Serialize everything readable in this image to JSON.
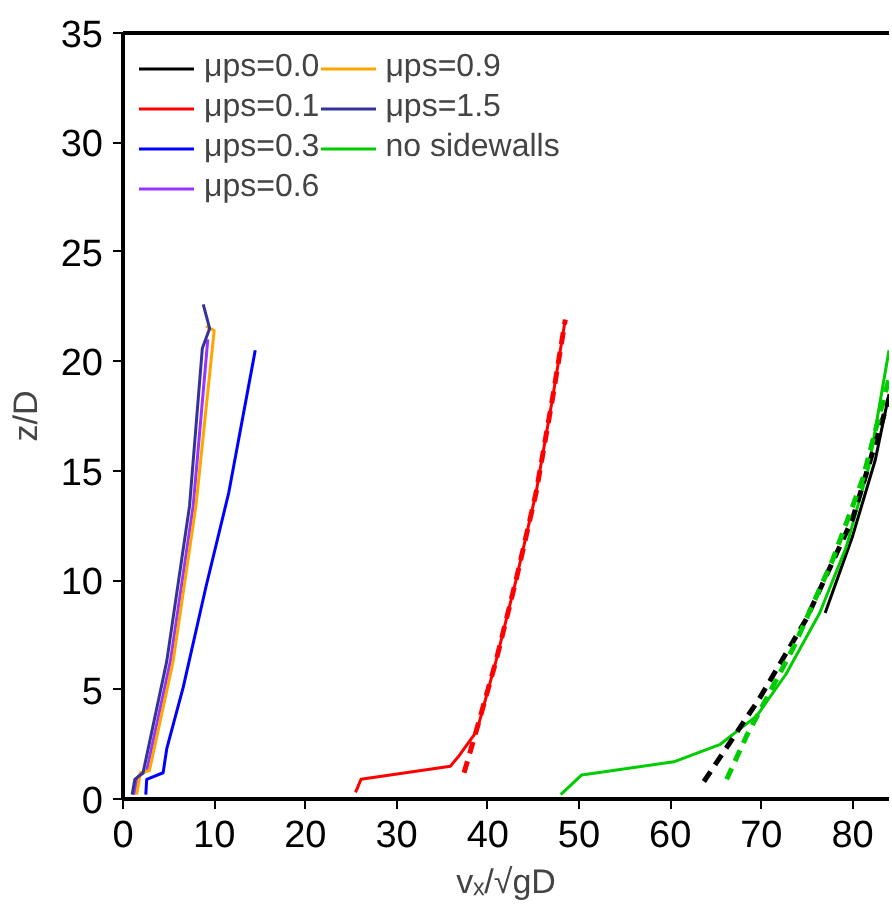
{
  "chart_data": {
    "type": "line",
    "xlabel": "vₓ/√gD",
    "ylabel": "z/D",
    "xlim": [
      0,
      84
    ],
    "ylim": [
      0,
      35
    ],
    "xticks": [
      0,
      10,
      20,
      30,
      40,
      50,
      60,
      70,
      80
    ],
    "yticks": [
      0,
      5,
      10,
      15,
      20,
      25,
      30,
      35
    ],
    "grid": false,
    "legend": "top left",
    "marker": "none",
    "series": [
      {
        "name": "μps=0.0",
        "color": "#000000",
        "x": [
          77,
          80,
          82.5,
          84
        ],
        "values": [
          8.5,
          12,
          15.5,
          18.5
        ]
      },
      {
        "name": "μps=0.1",
        "color": "#ff0000",
        "x": [
          25.5,
          26.1,
          35.9,
          36.9,
          38.8,
          40.9,
          43.1,
          45.3,
          47.1,
          48.5
        ],
        "values": [
          0.3,
          0.9,
          1.5,
          2.0,
          3.1,
          6.3,
          10.0,
          14.0,
          18.3,
          21.9
        ]
      },
      {
        "name": "μps=0.3",
        "color": "#0000ff",
        "x": [
          2.5,
          2.6,
          4.4,
          4.8,
          6.6,
          9.1,
          11.6,
          14.5
        ],
        "values": [
          0.2,
          0.9,
          1.2,
          2.3,
          5.1,
          9.7,
          14.0,
          20.5
        ]
      },
      {
        "name": "μps=0.6",
        "color": "#9933ff",
        "x": [
          1.2,
          1.6,
          2.6,
          5.2,
          7.7,
          9.3
        ],
        "values": [
          0.2,
          1.0,
          1.3,
          6.3,
          13.4,
          21.0
        ]
      },
      {
        "name": "μps=0.9",
        "color": "#ffa500",
        "x": [
          1.5,
          1.9,
          2.9,
          5.5,
          8.0,
          10.0,
          9.1
        ],
        "values": [
          0.2,
          1.2,
          1.3,
          6.3,
          13.4,
          21.4,
          21.6
        ]
      },
      {
        "name": "μps=1.5",
        "color": "#333399",
        "x": [
          1.0,
          1.3,
          2.2,
          4.8,
          7.3,
          8.7,
          9.5,
          8.8
        ],
        "values": [
          0.2,
          0.9,
          1.2,
          6.3,
          13.4,
          20.6,
          21.5,
          22.6
        ]
      },
      {
        "name": "no sidewalls",
        "color": "#00cc00",
        "x": [
          48.0,
          50.3,
          60.4,
          65.5,
          69.5,
          72.7,
          76.4,
          79.3,
          81.8,
          84.0
        ],
        "values": [
          0.2,
          1.1,
          1.7,
          2.5,
          3.8,
          5.7,
          8.5,
          11.5,
          15.2,
          20.5
        ]
      },
      {
        "color": "#ff0000",
        "line_style": "dashed",
        "x": [
          37.4,
          38.8,
          40.9,
          43.1,
          45.3,
          47.1,
          48.5
        ],
        "values": [
          1.2,
          3.2,
          6.3,
          10.0,
          14.0,
          18.3,
          21.9
        ]
      },
      {
        "color": "#000000",
        "line_style": "dashed",
        "x": [
          63.7,
          69.8,
          74.9,
          80.0,
          84.0
        ],
        "values": [
          0.8,
          4.6,
          8.2,
          12.8,
          18.3
        ]
      },
      {
        "color": "#00cc00",
        "line_style": "dashed",
        "x": [
          66.2,
          68.4,
          73.5,
          77.8,
          81.1,
          84.0
        ],
        "values": [
          0.9,
          2.9,
          6.9,
          10.9,
          14.6,
          19.2
        ]
      }
    ]
  }
}
